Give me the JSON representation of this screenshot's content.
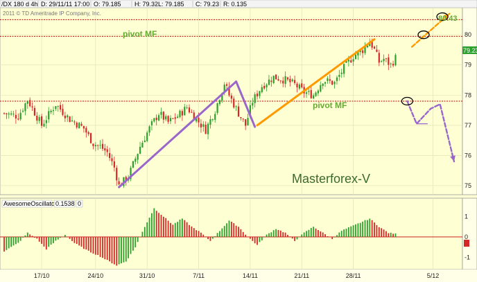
{
  "header": {
    "symbol": "/DX 180 d 4h",
    "date": "D: 29/11/11 17:00",
    "open": "O: 79.185",
    "high": "H: 79.32",
    "low": "L: 79.185",
    "close": "C: 79.23",
    "range": "R: 0.135"
  },
  "copyright": "2011 © TD Ameritrade IP Company, Inc.",
  "watermark": "Masterforex-V",
  "annotations": {
    "pivot_top": "pivot MF",
    "pivot_mid": "pivot MF",
    "target_label": "80.43",
    "last_price_tag": "79.23"
  },
  "oscillator": {
    "name": "AwesomeOscillator",
    "value": "0.1538",
    "zero_label": "0",
    "axis_ticks": [
      {
        "value": 1,
        "label": "1"
      },
      {
        "value": 0,
        "label": "0"
      },
      {
        "value": -1,
        "label": "-1"
      }
    ]
  },
  "colors": {
    "background": "#ffffd4",
    "bull": "#2ca02c",
    "bear": "#d62728",
    "purple": "#9966cc",
    "orange": "#ff9900",
    "pivot_line": "#c00000",
    "annotation_green": "#66aa33"
  },
  "chart_data": {
    "type": "candlestick",
    "y_axis": {
      "ylim": [
        74.7,
        80.9
      ],
      "ticks": [
        75,
        76,
        77,
        78,
        79,
        80
      ]
    },
    "x_axis": {
      "ticks": [
        "17/10",
        "24/10",
        "31/10",
        "7/11",
        "14/11",
        "21/11",
        "28/11",
        "5/12"
      ]
    },
    "levels": [
      {
        "name": "pivot MF top",
        "value": 79.95
      },
      {
        "name": "upper dotted",
        "value": 80.5
      },
      {
        "name": "pivot MF mid",
        "value": 77.8
      }
    ],
    "path": [
      [
        0,
        77.4
      ],
      [
        6,
        77.3
      ],
      [
        10,
        77.85
      ],
      [
        16,
        77.0
      ],
      [
        22,
        77.7
      ],
      [
        28,
        77.2
      ],
      [
        34,
        76.9
      ],
      [
        38,
        76.4
      ],
      [
        41,
        76.3
      ],
      [
        44,
        76.1
      ],
      [
        47,
        75.6
      ],
      [
        49,
        75.0
      ],
      [
        53,
        75.3
      ],
      [
        58,
        76.3
      ],
      [
        62,
        76.9
      ],
      [
        66,
        77.4
      ],
      [
        70,
        77.1
      ],
      [
        74,
        77.3
      ],
      [
        78,
        77.6
      ],
      [
        82,
        77.2
      ],
      [
        86,
        76.85
      ],
      [
        90,
        77.5
      ],
      [
        94,
        78.4
      ],
      [
        96,
        78.0
      ],
      [
        100,
        77.4
      ],
      [
        103,
        77.0
      ],
      [
        106,
        77.8
      ],
      [
        110,
        78.3
      ],
      [
        115,
        78.6
      ],
      [
        120,
        78.5
      ],
      [
        124,
        78.35
      ],
      [
        128,
        78.1
      ],
      [
        132,
        78.0
      ],
      [
        136,
        78.5
      ],
      [
        141,
        78.4
      ],
      [
        145,
        78.9
      ],
      [
        149,
        79.3
      ],
      [
        153,
        79.5
      ],
      [
        156,
        79.8
      ],
      [
        158,
        79.5
      ],
      [
        160,
        79.1
      ],
      [
        162,
        79.2
      ],
      [
        165,
        79.0
      ],
      [
        167,
        79.23
      ]
    ],
    "ao_path": [
      [
        0,
        -0.7
      ],
      [
        6,
        -0.3
      ],
      [
        10,
        0.2
      ],
      [
        14,
        -0.1
      ],
      [
        18,
        -0.6
      ],
      [
        22,
        -0.2
      ],
      [
        26,
        0.1
      ],
      [
        30,
        -0.3
      ],
      [
        36,
        -0.7
      ],
      [
        40,
        -0.9
      ],
      [
        44,
        -1.15
      ],
      [
        48,
        -1.4
      ],
      [
        52,
        -1.2
      ],
      [
        56,
        -0.5
      ],
      [
        60,
        0.5
      ],
      [
        64,
        1.4
      ],
      [
        68,
        1.0
      ],
      [
        72,
        0.6
      ],
      [
        76,
        0.9
      ],
      [
        80,
        0.5
      ],
      [
        84,
        0.2
      ],
      [
        88,
        -0.2
      ],
      [
        92,
        0.3
      ],
      [
        96,
        0.8
      ],
      [
        100,
        0.5
      ],
      [
        104,
        0.0
      ],
      [
        108,
        -0.4
      ],
      [
        112,
        0.1
      ],
      [
        116,
        0.4
      ],
      [
        120,
        0.2
      ],
      [
        124,
        -0.2
      ],
      [
        128,
        0.2
      ],
      [
        132,
        0.5
      ],
      [
        136,
        0.2
      ],
      [
        140,
        -0.1
      ],
      [
        144,
        0.3
      ],
      [
        148,
        0.5
      ],
      [
        152,
        0.7
      ],
      [
        156,
        0.9
      ],
      [
        160,
        0.5
      ],
      [
        164,
        0.2
      ],
      [
        167,
        0.15
      ]
    ],
    "ao_ylim": [
      -1.6,
      1.9
    ],
    "overlays": [
      {
        "name": "purple-impulse-up",
        "color": "purple",
        "points": [
          [
            49,
            74.95
          ],
          [
            99,
            78.45
          ]
        ]
      },
      {
        "name": "purple-impulse-down",
        "color": "purple",
        "points": [
          [
            99,
            78.45
          ],
          [
            107,
            76.95
          ]
        ]
      },
      {
        "name": "orange-channel-line",
        "color": "orange",
        "points": [
          [
            108,
            77.0
          ],
          [
            158,
            79.85
          ]
        ]
      },
      {
        "name": "purple-forecast",
        "color": "purple",
        "dashed": true,
        "points": [
          [
            172,
            77.8
          ],
          [
            176,
            77.05
          ],
          [
            182,
            77.55
          ],
          [
            186,
            77.7
          ],
          [
            192,
            75.8
          ]
        ]
      },
      {
        "name": "orange-forecast",
        "color": "orange",
        "dashed": true,
        "points": [
          [
            174,
            79.6
          ],
          [
            190,
            80.7
          ]
        ]
      }
    ],
    "ellipses": [
      {
        "name": "target-circle-upper",
        "x": 187,
        "y": 80.6
      },
      {
        "name": "target-circle-mid",
        "x": 179,
        "y": 80.0
      },
      {
        "name": "pivot-circle",
        "x": 172,
        "y": 77.8
      }
    ]
  }
}
